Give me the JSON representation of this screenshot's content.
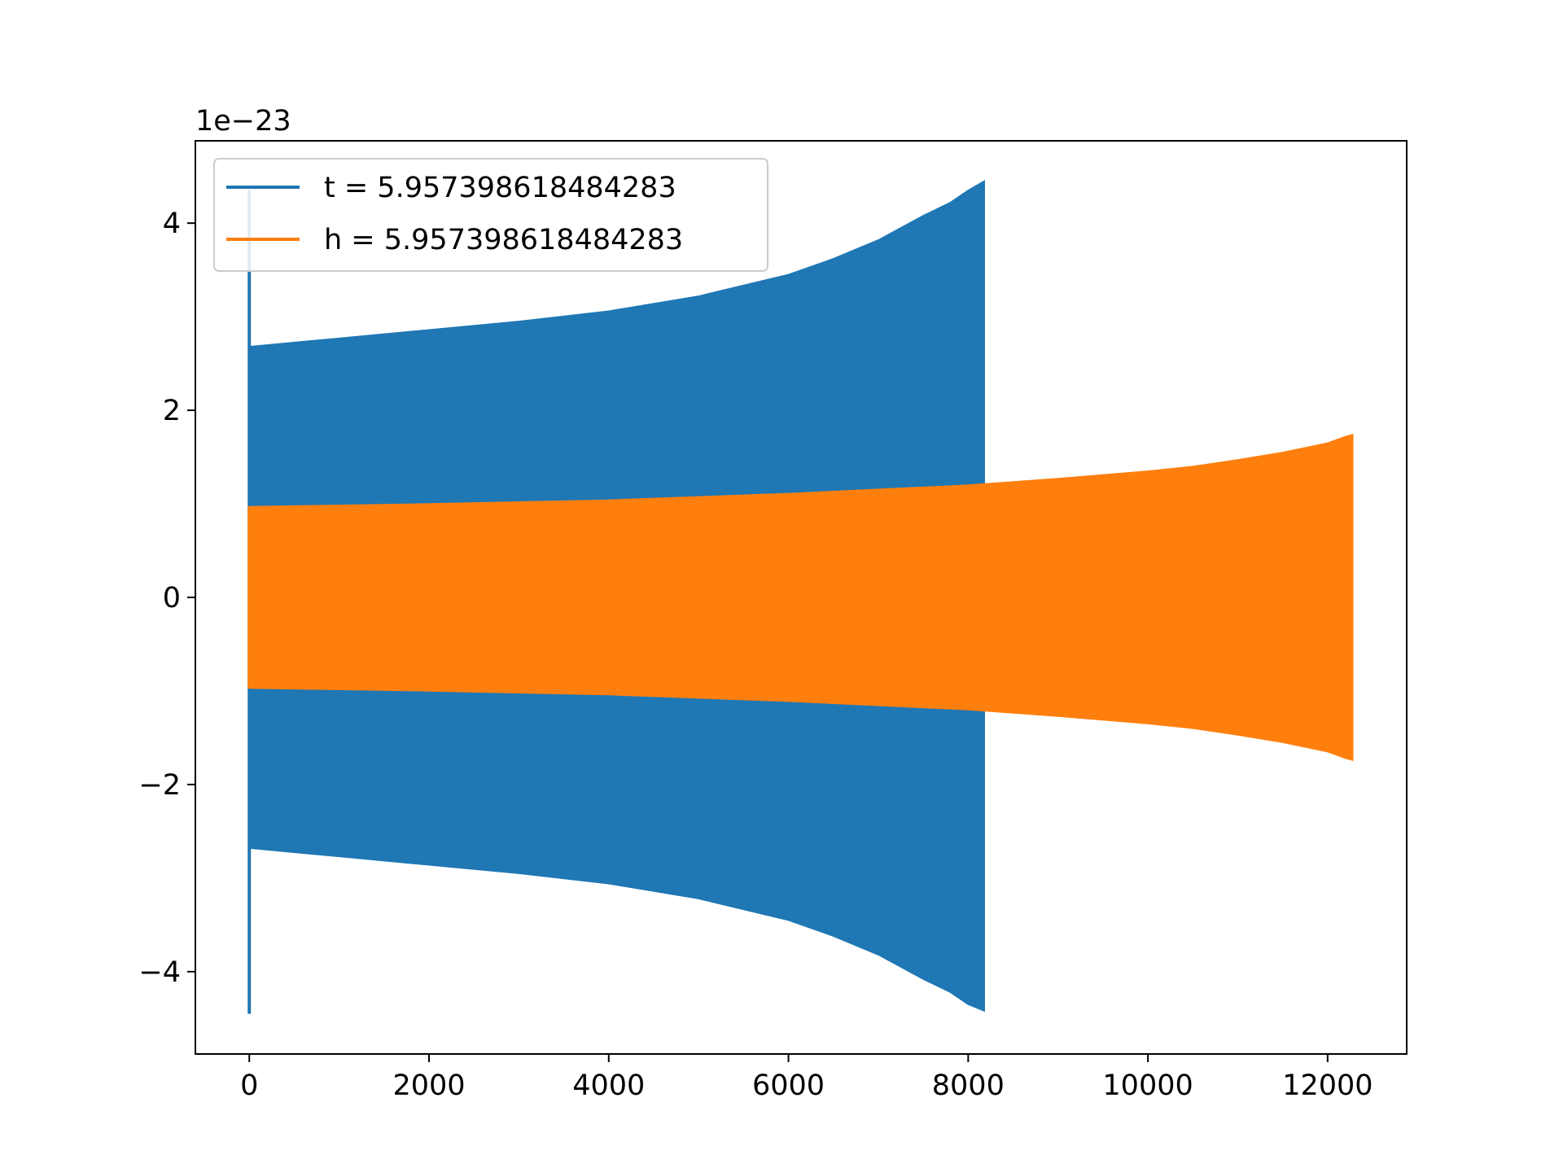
{
  "chart_data": {
    "type": "line",
    "title": "",
    "xlabel": "",
    "ylabel": "",
    "y_offset_label": "1e−23",
    "y_scale": 1e-23,
    "xlim": [
      -600,
      12880
    ],
    "ylim": [
      -4.88,
      4.88
    ],
    "xticks": [
      0,
      2000,
      4000,
      6000,
      8000,
      10000,
      12000
    ],
    "xtick_labels": [
      "0",
      "2000",
      "4000",
      "6000",
      "8000",
      "10000",
      "12000"
    ],
    "yticks": [
      -4,
      -2,
      0,
      2,
      4
    ],
    "ytick_labels": [
      "−4",
      "−2",
      "0",
      "2",
      "4"
    ],
    "grid": false,
    "legend_position": "top-left",
    "series": [
      {
        "name": "t = 5.957398618484283",
        "color": "#1f77b4",
        "kind": "oscillation-envelope",
        "spike": {
          "x": 0,
          "max": 4.35,
          "min": -4.45
        },
        "envelope": {
          "x": [
            0,
            1000,
            2000,
            3000,
            4000,
            5000,
            6000,
            6500,
            7000,
            7500,
            7800,
            8000,
            8180
          ],
          "max": [
            2.68,
            2.77,
            2.86,
            2.95,
            3.06,
            3.22,
            3.45,
            3.62,
            3.82,
            4.08,
            4.22,
            4.35,
            4.45
          ],
          "min": [
            -2.68,
            -2.77,
            -2.86,
            -2.95,
            -3.06,
            -3.22,
            -3.45,
            -3.62,
            -3.82,
            -4.08,
            -4.22,
            -4.35,
            -4.42
          ]
        }
      },
      {
        "name": "h = 5.957398618484283",
        "color": "#ff7f0e",
        "kind": "oscillation-envelope",
        "spike": {
          "x": 0,
          "max": 0.97,
          "min": -0.97
        },
        "envelope": {
          "x": [
            0,
            2000,
            4000,
            6000,
            8000,
            9000,
            10000,
            10500,
            11000,
            11500,
            12000,
            12200,
            12280
          ],
          "max": [
            0.97,
            1.0,
            1.04,
            1.11,
            1.2,
            1.27,
            1.35,
            1.4,
            1.47,
            1.55,
            1.65,
            1.72,
            1.74
          ],
          "min": [
            -0.97,
            -1.0,
            -1.04,
            -1.11,
            -1.2,
            -1.27,
            -1.35,
            -1.4,
            -1.47,
            -1.55,
            -1.65,
            -1.72,
            -1.74
          ]
        }
      }
    ]
  }
}
